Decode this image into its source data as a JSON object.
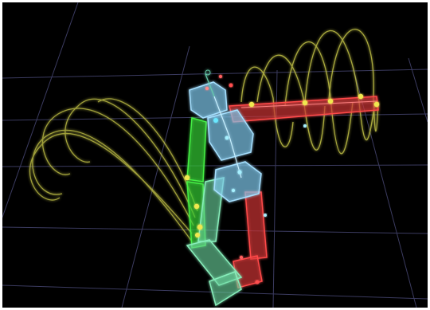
{
  "viewport": {
    "background": "#000000",
    "grid_color": "#5a5a8c",
    "trail_color": "#c8c84a"
  },
  "rig": {
    "spine_color": "#7fc8ec",
    "left_limb_color": "#33cc33",
    "right_limb_color": "#cc3333",
    "lower_limb_color": "#7fd8a8",
    "joint_marker_color": "#f0e850",
    "control_marker_color": "#ff5050"
  }
}
